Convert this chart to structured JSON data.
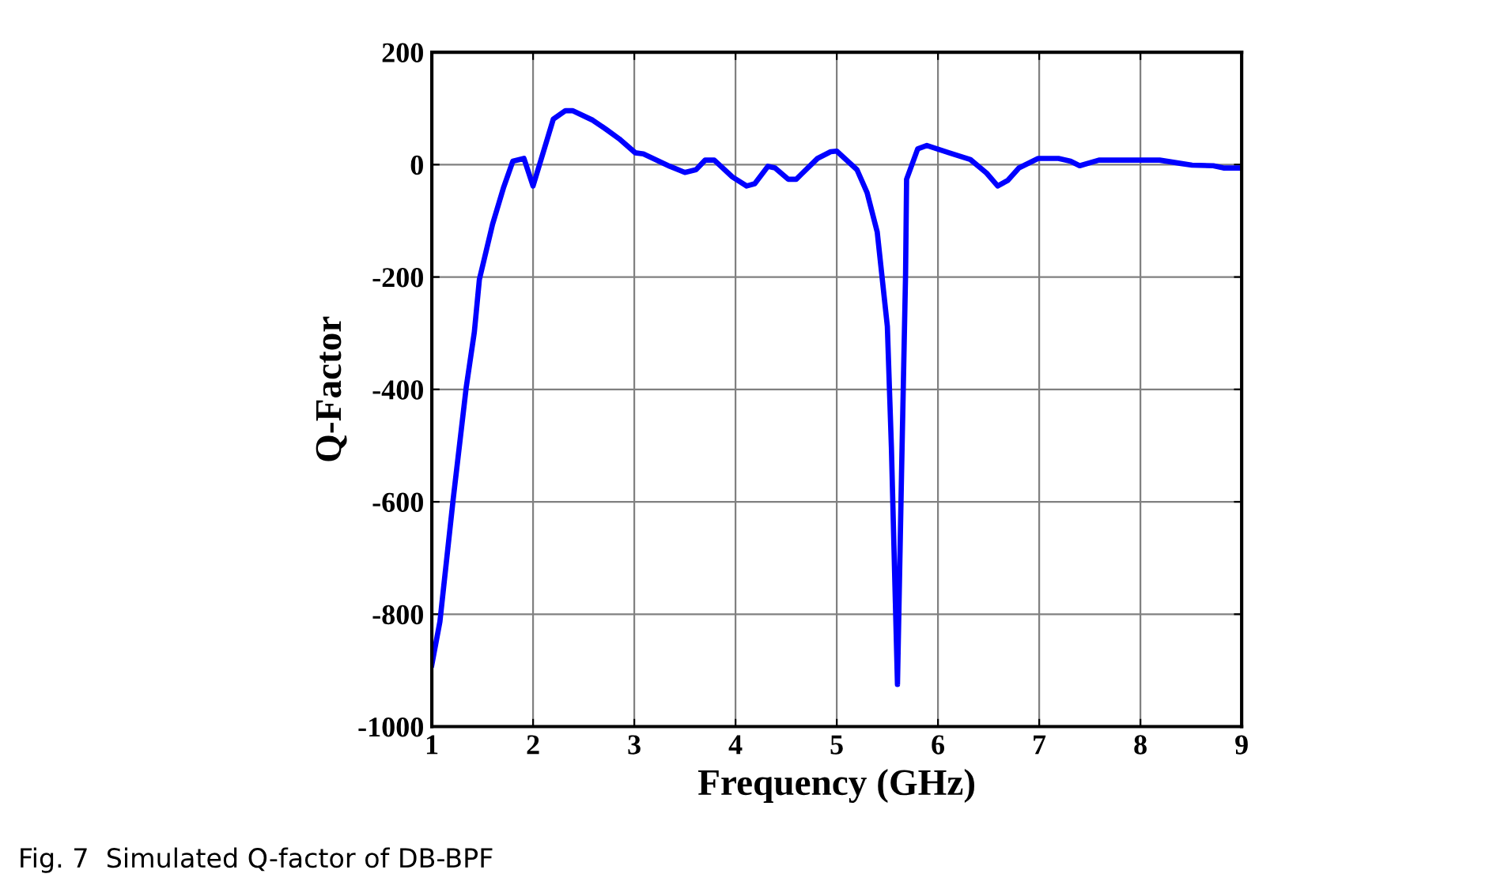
{
  "chart_data": {
    "type": "line",
    "xlabel": "Frequency (GHz)",
    "ylabel": "Q-Factor",
    "annotations": [
      "Fig. 7  Simulated Q-factor of DB-BPF"
    ],
    "x": [
      1.0,
      1.08,
      1.21,
      1.34,
      1.42,
      1.47,
      1.6,
      1.71,
      1.8,
      1.91,
      2.0,
      2.2,
      2.32,
      2.39,
      2.59,
      2.72,
      2.85,
      3.01,
      3.09,
      3.35,
      3.5,
      3.61,
      3.7,
      3.79,
      3.97,
      4.11,
      4.19,
      4.32,
      4.39,
      4.52,
      4.6,
      4.81,
      4.94,
      5.0,
      5.2,
      5.3,
      5.4,
      5.5,
      5.54,
      5.6,
      5.64,
      5.68,
      5.69,
      5.8,
      5.89,
      6.11,
      6.32,
      6.48,
      6.59,
      6.69,
      6.8,
      6.99,
      7.19,
      7.31,
      7.4,
      7.59,
      8.19,
      8.4,
      8.51,
      8.72,
      8.82,
      9.0
    ],
    "series": [
      {
        "color": "#0000ff",
        "values": [
          -890,
          -813,
          -597,
          -396,
          -298,
          -204,
          -106,
          -40,
          6,
          11,
          -38,
          81,
          96,
          96,
          79,
          63,
          46,
          21,
          19,
          -3,
          -14,
          -9,
          8,
          8,
          -22,
          -38,
          -34,
          -3,
          -6,
          -26,
          -26,
          11,
          23,
          24,
          -9,
          -50,
          -120,
          -288,
          -503,
          -925,
          -551,
          -195,
          -26,
          28,
          34,
          21,
          9,
          -15,
          -38,
          -28,
          -6,
          11,
          11,
          6,
          -2,
          8,
          8,
          2,
          -1,
          -2,
          -6,
          -6
        ]
      }
    ],
    "xlim": [
      1,
      9
    ],
    "xticks": [
      1,
      2,
      3,
      4,
      5,
      6,
      7,
      8,
      9
    ],
    "ylim": [
      -1000,
      200
    ],
    "yticks": [
      -1000,
      -800,
      -600,
      -400,
      -200,
      0,
      200
    ],
    "grid": true,
    "legend": false,
    "marker": "none",
    "line_style": "solid"
  }
}
